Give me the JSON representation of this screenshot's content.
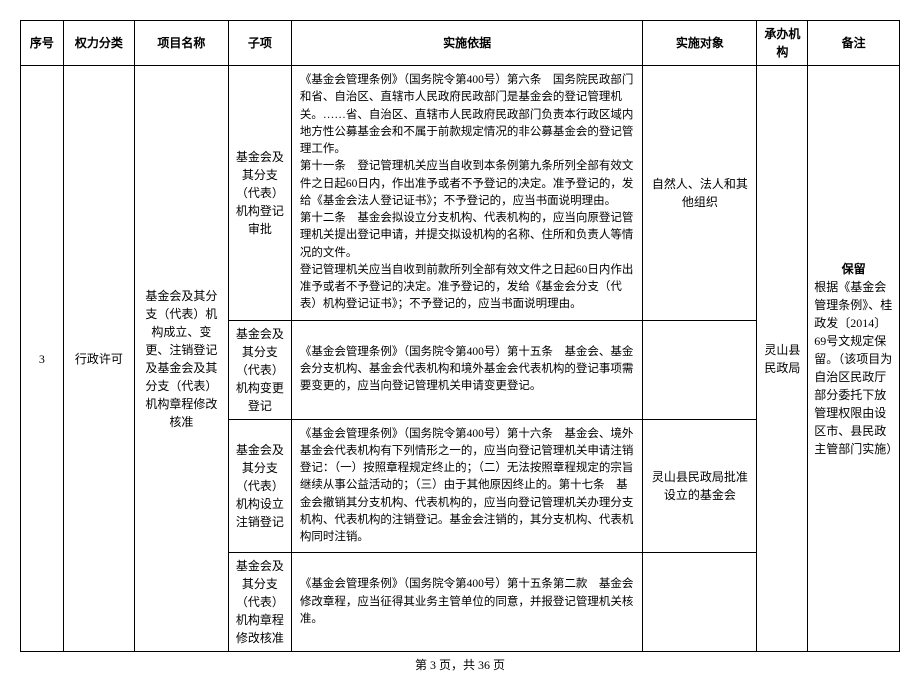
{
  "headers": {
    "seq": "序号",
    "category": "权力分类",
    "project": "项目名称",
    "subitem": "子项",
    "basis": "实施依据",
    "target": "实施对象",
    "agency": "承办机构",
    "remark": "备注"
  },
  "row": {
    "seq": "3",
    "category": "行政许可",
    "project": "基金会及其分支（代表）机构成立、变更、注销登记及基金会及其分支（代表）机构章程修改核准",
    "agency": "灵山县民政局",
    "remark_title": "保留",
    "remark_body": "根据《基金会管理条例》、桂政发〔2014〕69号文规定保留。（该项目为自治区民政厅部分委托下放管理权限由设区市、县民政主管部门实施）"
  },
  "subitems": [
    {
      "name": "基金会及其分支（代表）机构登记审批",
      "basis": "《基金会管理条例》（国务院令第400号）第六条　国务院民政部门和省、自治区、直辖市人民政府民政部门是基金会的登记管理机关。……省、自治区、直辖市人民政府民政部门负责本行政区域内地方性公募基金会和不属于前款规定情况的非公募基金会的登记管理工作。\n第十一条　登记管理机关应当自收到本条例第九条所列全部有效文件之日起60日内，作出准予或者不予登记的决定。准予登记的，发给《基金会法人登记证书》；不予登记的，应当书面说明理由。\n第十二条　基金会拟设立分支机构、代表机构的，应当向原登记管理机关提出登记申请，并提交拟设机构的名称、住所和负责人等情况的文件。\n登记管理机关应当自收到前款所列全部有效文件之日起60日内作出准予或者不予登记的决定。准予登记的，发给《基金会分支（代表）机构登记证书》；不予登记的，应当书面说明理由。",
      "target": "自然人、法人和其他组织"
    },
    {
      "name": "基金会及其分支（代表）机构变更登记",
      "basis": "《基金会管理条例》（国务院令第400号）第十五条　基金会、基金会分支机构、基金会代表机构和境外基金会代表机构的登记事项需要变更的，应当向登记管理机关申请变更登记。",
      "target": ""
    },
    {
      "name": "基金会及其分支（代表）机构设立注销登记",
      "basis": "《基金会管理条例》（国务院令第400号）第十六条　基金会、境外基金会代表机构有下列情形之一的，应当向登记管理机关申请注销登记：（一）按照章程规定终止的；（二）无法按照章程规定的宗旨继续从事公益活动的；（三）由于其他原因终止的。第十七条　基金会撤销其分支机构、代表机构的，应当向登记管理机关办理分支机构、代表机构的注销登记。基金会注销的，其分支机构、代表机构同时注销。",
      "target": "灵山县民政局批准设立的基金会"
    },
    {
      "name": "基金会及其分支（代表）机构章程修改核准",
      "basis": "《基金会管理条例》（国务院令第400号）第十五条第二款　基金会修改章程，应当征得其业务主管单位的同意，并报登记管理机关核准。",
      "target": ""
    }
  ],
  "footer": "第 3 页，共 36 页"
}
